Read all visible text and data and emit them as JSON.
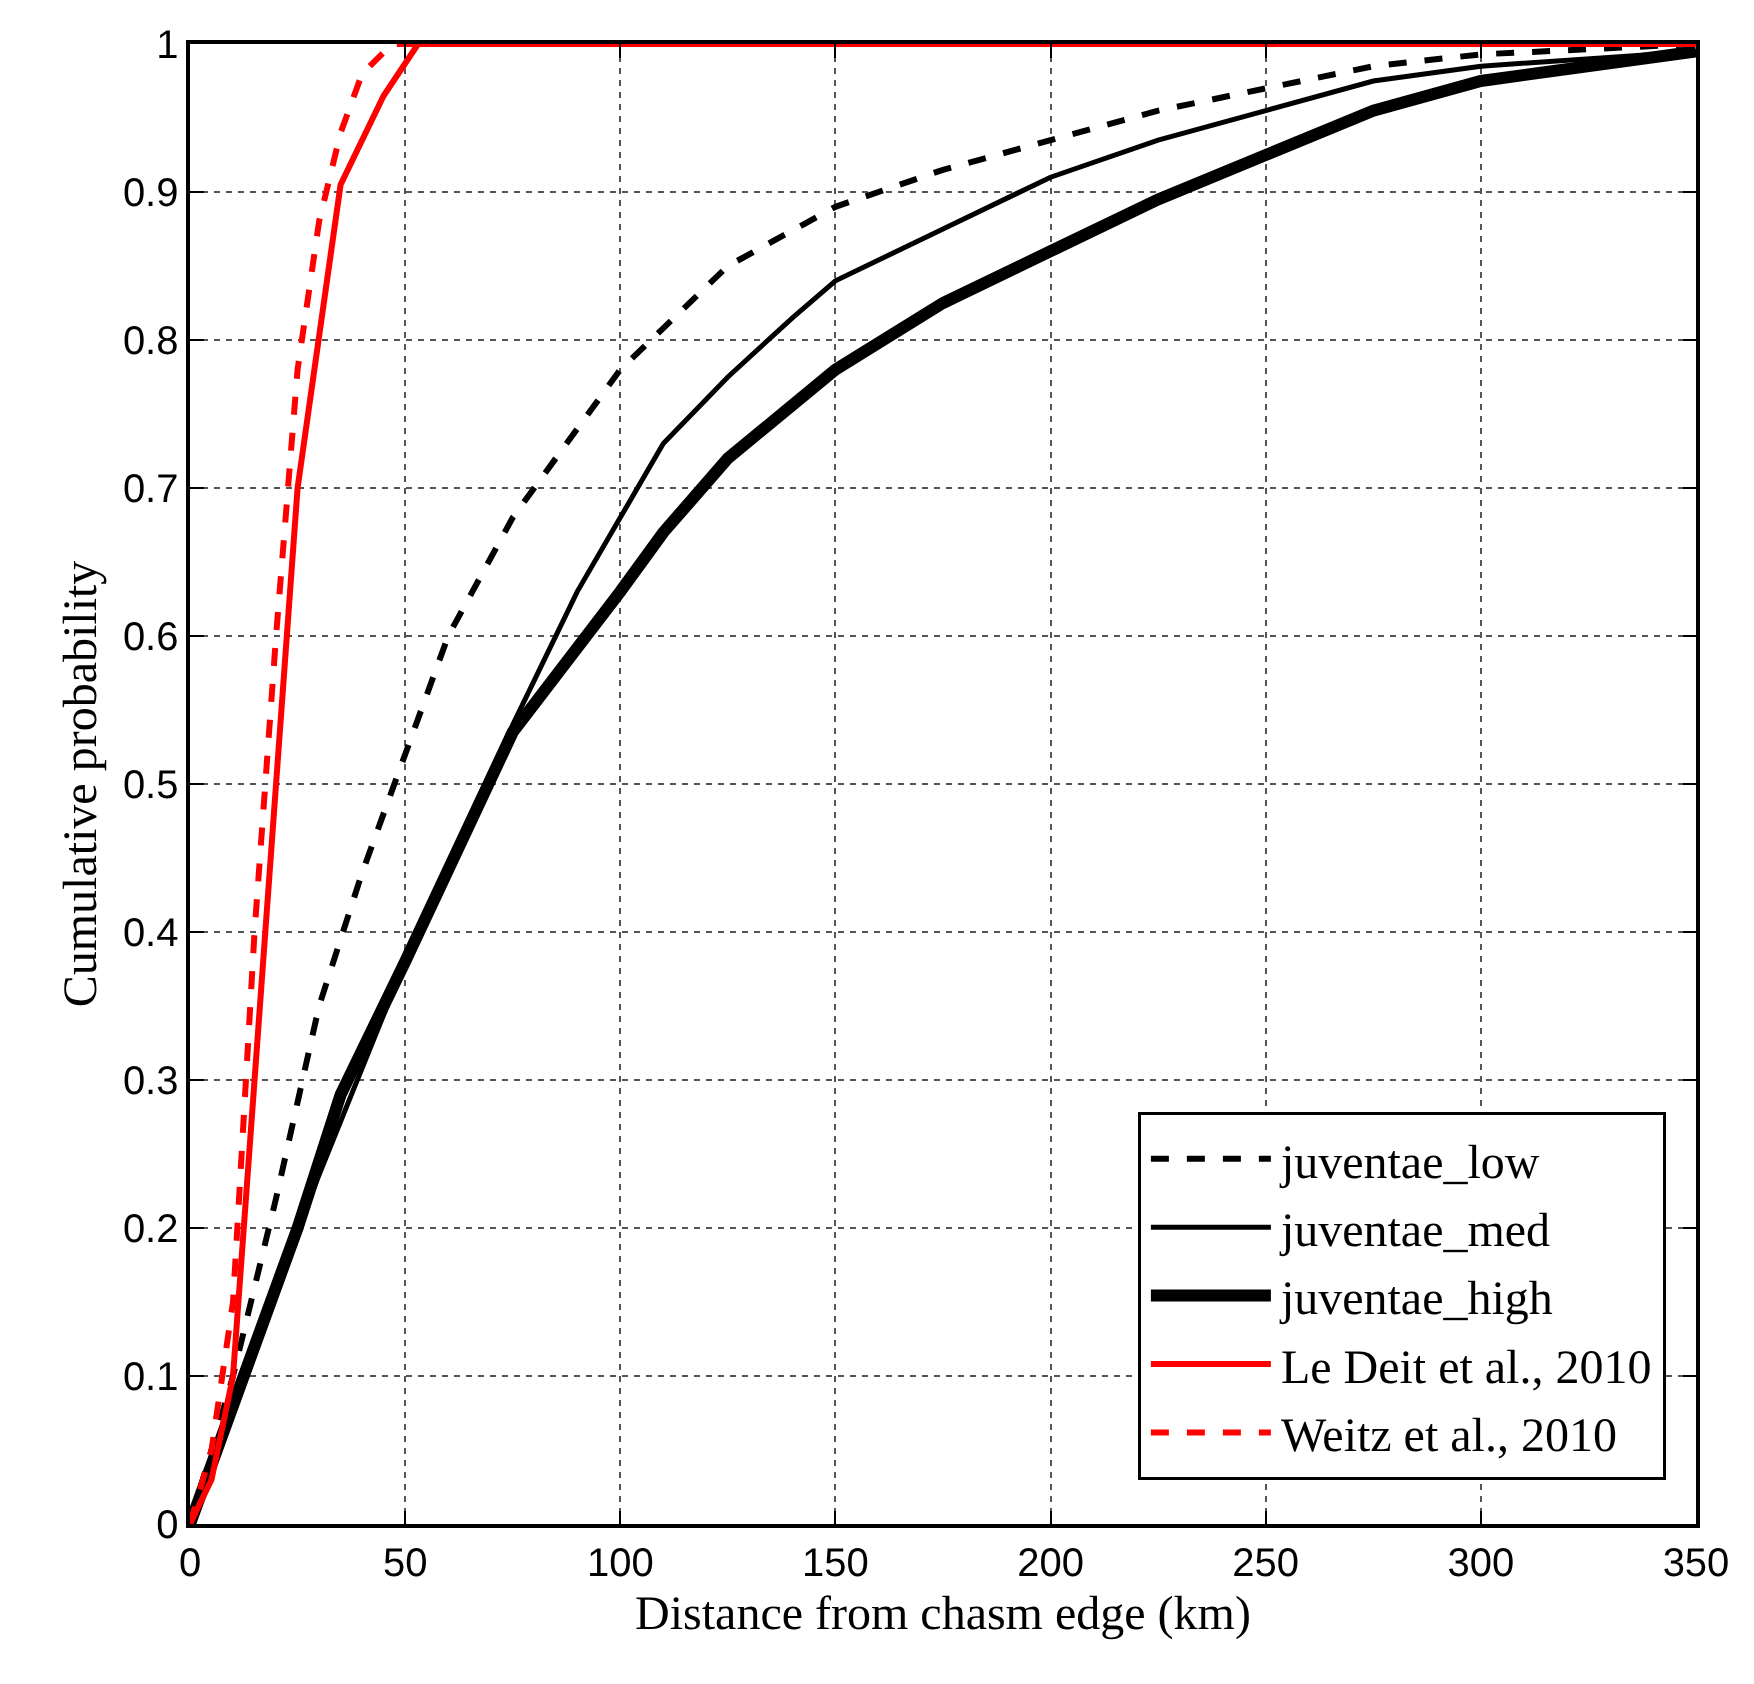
{
  "chart_data": {
    "type": "line",
    "xlabel": "Distance from chasm edge (km)",
    "ylabel": "Cumulative probability",
    "xlim": [
      0,
      350
    ],
    "xticks": [
      0,
      50,
      100,
      150,
      200,
      250,
      300,
      350
    ],
    "ylim": [
      0,
      1
    ],
    "yticks": [
      0,
      0.1,
      0.2,
      0.3,
      0.4,
      0.5,
      0.6,
      0.7,
      0.8,
      0.9,
      1
    ],
    "grid": true,
    "legend": "bottom right",
    "marker": "none",
    "series": [
      {
        "name": "juventae_low",
        "color": "#000000",
        "line_style": "dashed",
        "x": [
          0,
          10,
          20,
          30,
          40,
          50,
          60,
          75,
          100,
          125,
          150,
          175,
          200,
          225,
          250,
          275,
          300,
          350
        ],
        "values": [
          0,
          0.1,
          0.22,
          0.35,
          0.44,
          0.52,
          0.6,
          0.68,
          0.78,
          0.85,
          0.89,
          0.915,
          0.935,
          0.955,
          0.97,
          0.985,
          0.993,
          1
        ]
      },
      {
        "name": "juventae_med",
        "color": "#000000",
        "line_style": "solid",
        "x": [
          0,
          25,
          50,
          75,
          90,
          100,
          110,
          125,
          140,
          150,
          175,
          200,
          225,
          250,
          275,
          300,
          350
        ],
        "values": [
          0,
          0.2,
          0.38,
          0.54,
          0.63,
          0.68,
          0.73,
          0.775,
          0.815,
          0.84,
          0.875,
          0.91,
          0.935,
          0.955,
          0.975,
          0.985,
          0.995
        ]
      },
      {
        "name": "juventae_high",
        "color": "#000000",
        "line_style": "solid",
        "x": [
          0,
          10,
          25,
          35,
          50,
          75,
          100,
          110,
          125,
          150,
          175,
          200,
          225,
          250,
          275,
          300,
          350
        ],
        "values": [
          0,
          0.08,
          0.2,
          0.29,
          0.38,
          0.535,
          0.63,
          0.67,
          0.72,
          0.78,
          0.825,
          0.86,
          0.895,
          0.925,
          0.955,
          0.975,
          0.995
        ]
      },
      {
        "name": "Le Deit et al., 2010",
        "color": "#ff0000",
        "line_style": "solid",
        "x": [
          0,
          5,
          10,
          15,
          20,
          25,
          35,
          45,
          53,
          350
        ],
        "values": [
          0,
          0.03,
          0.1,
          0.3,
          0.5,
          0.7,
          0.905,
          0.965,
          1,
          1
        ]
      },
      {
        "name": "Weitz et al., 2010",
        "color": "#ff0000",
        "line_style": "dashed",
        "x": [
          0,
          5,
          10,
          15,
          20,
          25,
          30,
          35,
          40,
          47,
          350
        ],
        "values": [
          0,
          0.05,
          0.15,
          0.4,
          0.6,
          0.78,
          0.88,
          0.94,
          0.98,
          1,
          1
        ]
      }
    ]
  }
}
